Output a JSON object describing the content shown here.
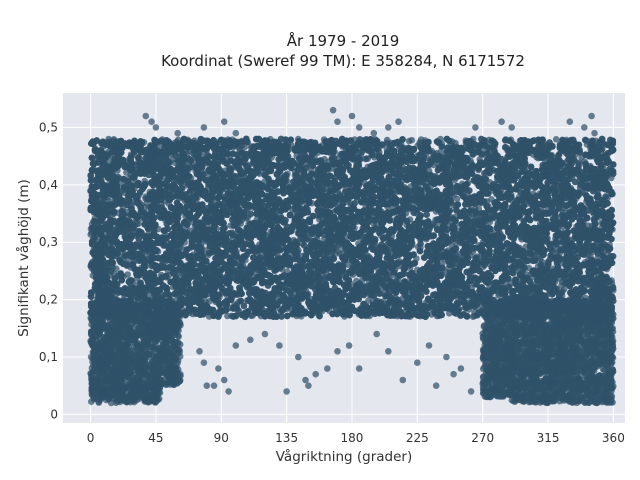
{
  "chart_data": {
    "type": "scatter",
    "title_line1": "År 1979 - 2019",
    "title_line2": "Koordinat (Sweref 99 TM): E 358284, N 6171572",
    "xlabel": "Vågriktning (grader)",
    "ylabel": "Signifikant våghöjd (m)",
    "xlim": [
      -19,
      368
    ],
    "ylim": [
      -0.015,
      0.56
    ],
    "x_ticks": [
      0,
      45,
      90,
      135,
      180,
      225,
      270,
      315,
      360
    ],
    "x_tick_labels": [
      "0",
      "45",
      "90",
      "135",
      "180",
      "225",
      "270",
      "315",
      "360"
    ],
    "y_ticks": [
      0,
      0.1,
      0.2,
      0.3,
      0.4,
      0.5
    ],
    "y_tick_labels": [
      "0",
      "0,1",
      "0,2",
      "0,3",
      "0,4",
      "0,5"
    ],
    "grid": true,
    "background": "#e5e7ef",
    "marker_color": "#2f5269",
    "series": [
      {
        "dense_regions": [
          {
            "x": [
              0,
              360
            ],
            "y": [
              0.17,
              0.48
            ]
          },
          {
            "x": [
              0,
              48
            ],
            "y": [
              0.02,
              0.2
            ]
          },
          {
            "x": [
              290,
              360
            ],
            "y": [
              0.02,
              0.2
            ]
          },
          {
            "x": [
              48,
              62
            ],
            "y": [
              0.05,
              0.2
            ]
          },
          {
            "x": [
              270,
              290
            ],
            "y": [
              0.03,
              0.2
            ]
          }
        ],
        "outliers": [
          [
            38,
            0.52
          ],
          [
            42,
            0.51
          ],
          [
            45,
            0.5
          ],
          [
            60,
            0.49
          ],
          [
            78,
            0.5
          ],
          [
            92,
            0.51
          ],
          [
            100,
            0.49
          ],
          [
            167,
            0.53
          ],
          [
            170,
            0.51
          ],
          [
            180,
            0.52
          ],
          [
            185,
            0.5
          ],
          [
            195,
            0.49
          ],
          [
            205,
            0.5
          ],
          [
            212,
            0.51
          ],
          [
            265,
            0.5
          ],
          [
            283,
            0.51
          ],
          [
            290,
            0.5
          ],
          [
            330,
            0.51
          ],
          [
            340,
            0.5
          ],
          [
            345,
            0.52
          ],
          [
            347,
            0.49
          ],
          [
            75,
            0.11
          ],
          [
            78,
            0.09
          ],
          [
            80,
            0.05
          ],
          [
            85,
            0.05
          ],
          [
            88,
            0.08
          ],
          [
            92,
            0.06
          ],
          [
            95,
            0.04
          ],
          [
            100,
            0.12
          ],
          [
            110,
            0.13
          ],
          [
            120,
            0.14
          ],
          [
            130,
            0.12
          ],
          [
            135,
            0.04
          ],
          [
            143,
            0.1
          ],
          [
            148,
            0.06
          ],
          [
            150,
            0.05
          ],
          [
            155,
            0.07
          ],
          [
            163,
            0.08
          ],
          [
            170,
            0.11
          ],
          [
            178,
            0.12
          ],
          [
            185,
            0.08
          ],
          [
            197,
            0.14
          ],
          [
            205,
            0.11
          ],
          [
            215,
            0.06
          ],
          [
            225,
            0.09
          ],
          [
            233,
            0.12
          ],
          [
            238,
            0.05
          ],
          [
            245,
            0.1
          ],
          [
            250,
            0.07
          ],
          [
            255,
            0.08
          ],
          [
            262,
            0.04
          ]
        ]
      }
    ]
  }
}
